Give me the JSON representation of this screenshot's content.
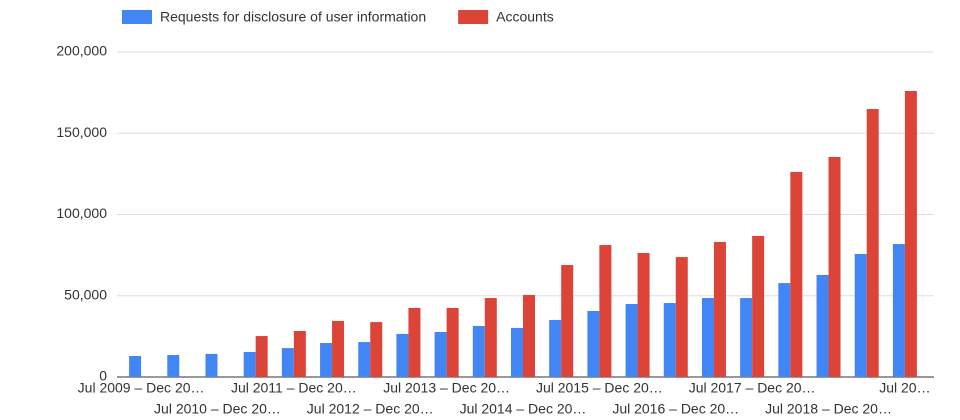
{
  "chart_data": {
    "type": "bar",
    "categories": [
      "Jul 2009 – Dec 20…",
      null,
      "Jul 2010 – Dec 20…",
      null,
      "Jul 2011 – Dec 20…",
      null,
      "Jul 2012 – Dec 20…",
      null,
      "Jul 2013 – Dec 20…",
      null,
      "Jul 2014 – Dec 20…",
      null,
      "Jul 2015 – Dec 20…",
      null,
      "Jul 2016 – Dec 20…",
      null,
      "Jul 2017 – Dec 20…",
      null,
      "Jul 2018 – Dec 20…",
      null,
      "Jul 20…"
    ],
    "series": [
      {
        "name": "Requests for disclosure of user information",
        "color": "#4285f4",
        "values": [
          12900,
          13500,
          14200,
          15400,
          17800,
          20900,
          21500,
          26500,
          27700,
          31400,
          30200,
          35100,
          40600,
          44900,
          45500,
          48600,
          48600,
          57800,
          62800,
          75700,
          81800
        ]
      },
      {
        "name": "Accounts",
        "color": "#db4437",
        "values": [
          null,
          null,
          null,
          25200,
          28300,
          34500,
          33800,
          42500,
          42500,
          48600,
          50500,
          68900,
          81200,
          76300,
          73800,
          83100,
          86800,
          126200,
          135400,
          164900,
          176000
        ]
      }
    ],
    "ylim": [
      0,
      200000
    ],
    "yticks": [
      0,
      {
        "value": 50000,
        "label": "50,000"
      },
      {
        "value": 100000,
        "label": "100,000"
      },
      {
        "value": 150000,
        "label": "150,000"
      },
      {
        "value": 200000,
        "label": "200,000"
      }
    ],
    "grid": true,
    "legend": "top"
  }
}
